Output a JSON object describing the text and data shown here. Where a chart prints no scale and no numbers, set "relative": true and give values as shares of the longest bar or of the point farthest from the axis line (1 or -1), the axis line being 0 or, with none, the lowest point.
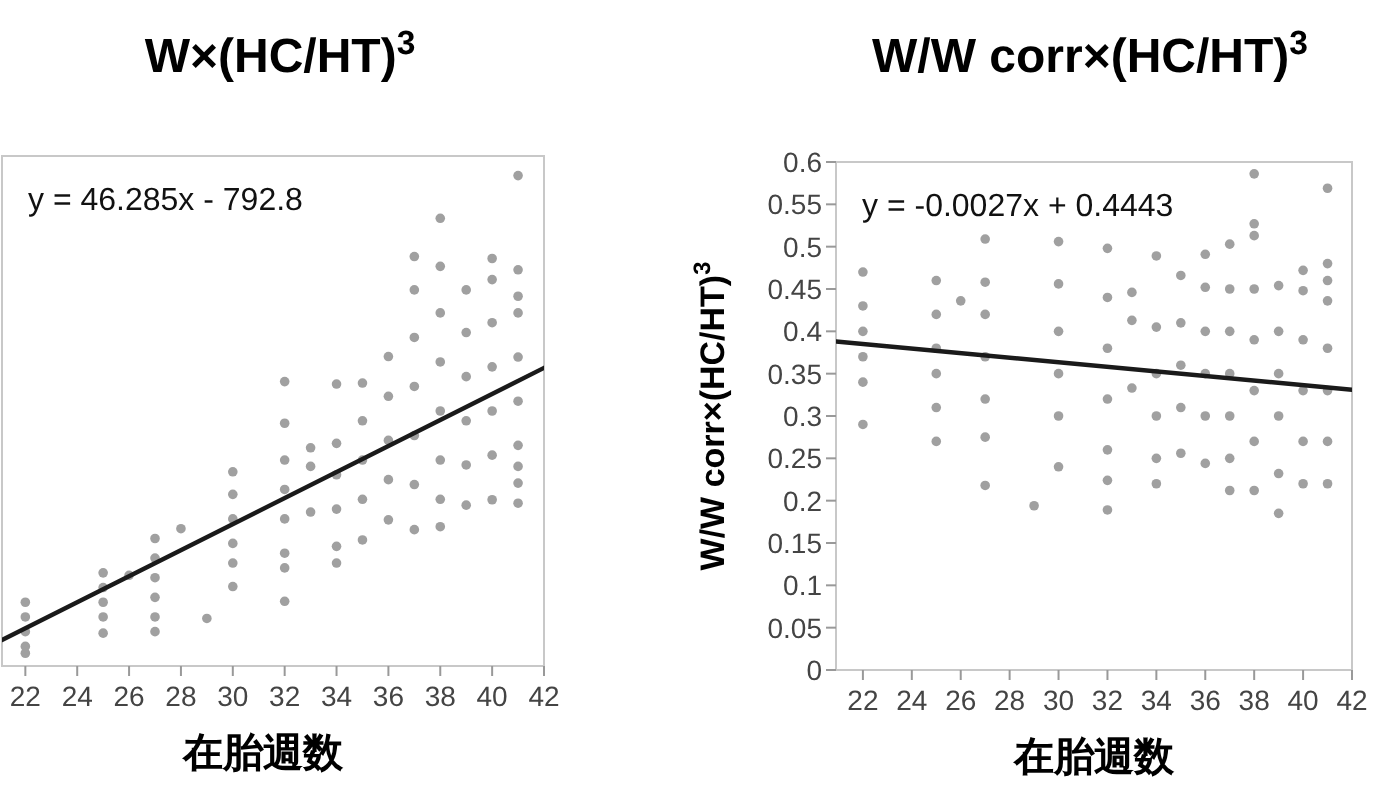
{
  "chart_data": [
    {
      "type": "scatter",
      "title": "W×(HC/HT)$^{3}$",
      "xlabel": "在胎週数",
      "relative": true,
      "tick_labels": "x",
      "grid": false,
      "xlim": [
        21.1,
        42
      ],
      "xticks": [
        22,
        24,
        26,
        28,
        30,
        32,
        34,
        36,
        38,
        40,
        42
      ],
      "annotations": [
        "y = 46.285x - 792.8"
      ],
      "series": [
        {
          "marker": "circle",
          "color": "#a0a0a0",
          "x": [
            22,
            22,
            22,
            22,
            22,
            25,
            25,
            25,
            25,
            25,
            26,
            27,
            27,
            27,
            27,
            27,
            27,
            28,
            29,
            30,
            30,
            30,
            30,
            30,
            30,
            32,
            32,
            32,
            32,
            32,
            32,
            32,
            32,
            33,
            33,
            33,
            34,
            34,
            34,
            34,
            34,
            34,
            35,
            35,
            35,
            35,
            35,
            36,
            36,
            36,
            36,
            36,
            37,
            37,
            37,
            37,
            37,
            37,
            37,
            38,
            38,
            38,
            38,
            38,
            38,
            38,
            38,
            39,
            39,
            39,
            39,
            39,
            39,
            40,
            40,
            40,
            40,
            40,
            40,
            40,
            41,
            41,
            41,
            41,
            41,
            41,
            41,
            41,
            41,
            41
          ],
          "values": [
            0.13,
            0.1,
            0.07,
            0.04,
            0.026,
            0.19,
            0.16,
            0.13,
            0.1,
            0.067,
            0.185,
            0.26,
            0.22,
            0.18,
            0.14,
            0.1,
            0.07,
            0.28,
            0.097,
            0.396,
            0.35,
            0.3,
            0.25,
            0.21,
            0.162,
            0.58,
            0.495,
            0.42,
            0.36,
            0.3,
            0.23,
            0.2,
            0.132,
            0.445,
            0.407,
            0.314,
            0.575,
            0.454,
            0.39,
            0.32,
            0.244,
            0.21,
            0.577,
            0.5,
            0.42,
            0.34,
            0.257,
            0.631,
            0.55,
            0.46,
            0.38,
            0.298,
            0.835,
            0.767,
            0.67,
            0.57,
            0.47,
            0.37,
            0.278,
            0.913,
            0.815,
            0.72,
            0.62,
            0.52,
            0.42,
            0.34,
            0.284,
            0.767,
            0.68,
            0.59,
            0.5,
            0.41,
            0.328,
            0.831,
            0.788,
            0.7,
            0.61,
            0.52,
            0.43,
            0.339,
            1.0,
            0.808,
            0.754,
            0.72,
            0.63,
            0.54,
            0.45,
            0.407,
            0.373,
            0.332
          ]
        },
        {
          "type": "line",
          "color": "#1a1a1a",
          "x": [
            21.1,
            42
          ],
          "values": [
            0.053,
            0.608
          ]
        }
      ]
    },
    {
      "type": "scatter",
      "title": "W/W corr×(HC/HT)$^{3}$",
      "xlabel": "在胎週数",
      "ylabel": "W/W corr×(HC/HT)$^{3}$",
      "grid": false,
      "xlim": [
        20.9,
        42
      ],
      "xticks": [
        22,
        24,
        26,
        28,
        30,
        32,
        34,
        36,
        38,
        40,
        42
      ],
      "ylim": [
        0,
        0.6
      ],
      "yticks": [
        0,
        0.05,
        0.1,
        0.15,
        0.2,
        0.25,
        0.3,
        0.35,
        0.4,
        0.45,
        0.5,
        0.55,
        0.6
      ],
      "annotations": [
        "y = -0.0027x + 0.4443"
      ],
      "series": [
        {
          "marker": "circle",
          "color": "#a0a0a0",
          "x": [
            22,
            22,
            22,
            22,
            22,
            22,
            25,
            25,
            25,
            25,
            25,
            25,
            26,
            27,
            27,
            27,
            27,
            27,
            27,
            27,
            29,
            30,
            30,
            30,
            30,
            30,
            30,
            32,
            32,
            32,
            32,
            32,
            32,
            32,
            33,
            33,
            33,
            34,
            34,
            34,
            34,
            34,
            34,
            35,
            35,
            35,
            35,
            35,
            36,
            36,
            36,
            36,
            36,
            36,
            37,
            37,
            37,
            37,
            37,
            37,
            37,
            38,
            38,
            38,
            38,
            38,
            38,
            38,
            38,
            39,
            39,
            39,
            39,
            39,
            39,
            40,
            40,
            40,
            40,
            40,
            40,
            41,
            41,
            41,
            41,
            41,
            41,
            41,
            41
          ],
          "values": [
            0.47,
            0.43,
            0.4,
            0.37,
            0.34,
            0.29,
            0.46,
            0.42,
            0.38,
            0.35,
            0.31,
            0.27,
            0.436,
            0.509,
            0.458,
            0.42,
            0.37,
            0.32,
            0.275,
            0.218,
            0.194,
            0.506,
            0.456,
            0.4,
            0.35,
            0.3,
            0.24,
            0.498,
            0.44,
            0.38,
            0.32,
            0.26,
            0.224,
            0.189,
            0.446,
            0.413,
            0.333,
            0.489,
            0.405,
            0.35,
            0.3,
            0.25,
            0.22,
            0.466,
            0.41,
            0.36,
            0.31,
            0.256,
            0.491,
            0.452,
            0.4,
            0.35,
            0.3,
            0.244,
            0.503,
            0.45,
            0.4,
            0.35,
            0.3,
            0.25,
            0.212,
            0.586,
            0.527,
            0.513,
            0.45,
            0.39,
            0.33,
            0.27,
            0.212,
            0.454,
            0.4,
            0.35,
            0.3,
            0.232,
            0.185,
            0.472,
            0.448,
            0.39,
            0.33,
            0.27,
            0.22,
            0.569,
            0.48,
            0.46,
            0.436,
            0.38,
            0.33,
            0.27,
            0.22
          ]
        },
        {
          "type": "line",
          "color": "#1a1a1a",
          "x": [
            20.9,
            42
          ],
          "values": [
            0.388,
            0.331
          ]
        }
      ]
    }
  ]
}
